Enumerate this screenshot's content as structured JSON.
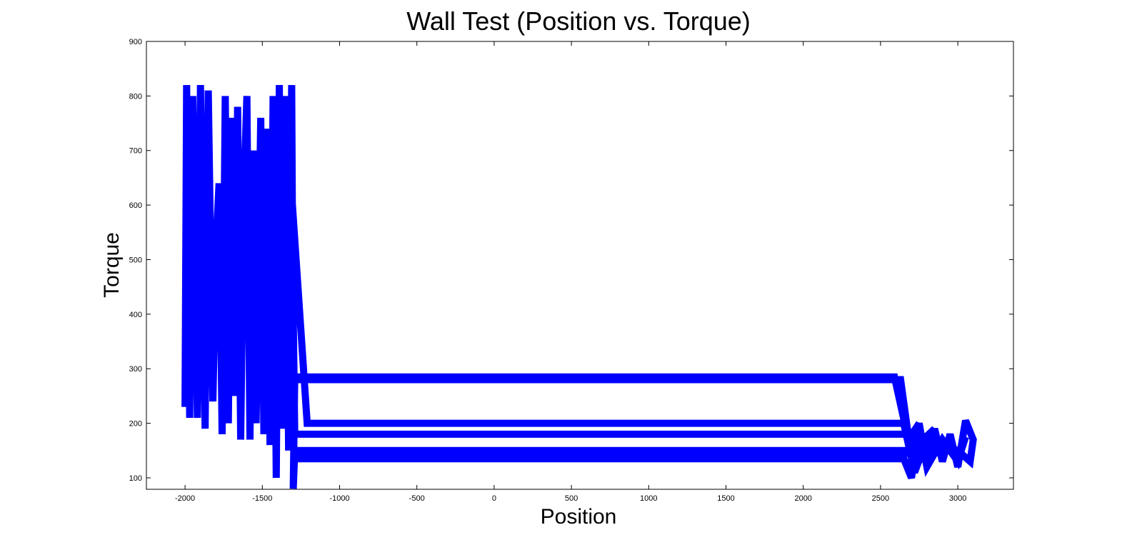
{
  "chart_data": {
    "type": "line",
    "title": "Wall Test (Position vs. Torque)",
    "x_label": "Position",
    "y_label": "Torque",
    "color": "#0000ff",
    "x": [
      -2000,
      -1990,
      -1970,
      -1950,
      -1920,
      -1900,
      -1870,
      -1850,
      -1820,
      -1800,
      -1780,
      -1760,
      -1740,
      -1720,
      -1700,
      -1680,
      -1660,
      -1640,
      -1620,
      -1600,
      -1580,
      -1560,
      -1540,
      -1510,
      -1490,
      -1470,
      -1450,
      -1430,
      -1410,
      -1390,
      -1370,
      -1350,
      -1330,
      -1310,
      -1300,
      2630,
      2700,
      2750,
      2800,
      2850,
      2900,
      2950,
      3000,
      3050,
      3100,
      3080,
      3000,
      2900,
      2680,
      -1290,
      -1310,
      -1210,
      2650,
      2720,
      2800,
      2850,
      2700,
      -1290,
      -1300,
      -1290,
      2590,
      2680,
      2750,
      2700,
      -1280,
      -1290,
      2650,
      2700,
      2750,
      2800,
      2900,
      3000,
      3050
    ],
    "values": [
      230,
      820,
      210,
      800,
      210,
      820,
      190,
      810,
      240,
      520,
      640,
      180,
      800,
      200,
      760,
      250,
      780,
      170,
      620,
      800,
      170,
      700,
      200,
      760,
      180,
      740,
      160,
      800,
      100,
      820,
      190,
      800,
      150,
      820,
      280,
      280,
      135,
      200,
      120,
      190,
      130,
      180,
      120,
      205,
      170,
      130,
      150,
      160,
      180,
      180,
      620,
      200,
      200,
      110,
      170,
      190,
      150,
      150,
      80,
      285,
      285,
      170,
      200,
      145,
      145,
      135,
      135,
      100,
      190,
      120,
      170,
      130,
      175
    ],
    "xlim": [
      -2250,
      3360
    ],
    "ylim": [
      79,
      900
    ],
    "xticks": [
      -2000,
      -1500,
      -1000,
      -500,
      0,
      500,
      1000,
      1500,
      2000,
      2500,
      3000
    ],
    "yticks": [
      100,
      200,
      300,
      400,
      500,
      600,
      700,
      800,
      900
    ]
  }
}
